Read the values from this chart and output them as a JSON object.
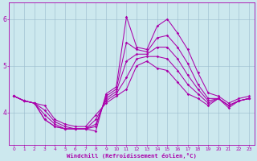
{
  "xlabel": "Windchill (Refroidissement éolien,°C)",
  "bg_color": "#cce8ee",
  "line_color": "#aa00aa",
  "grid_color": "#99bbcc",
  "xlim": [
    -0.5,
    23.5
  ],
  "ylim": [
    3.3,
    6.35
  ],
  "xticks": [
    0,
    1,
    2,
    3,
    4,
    5,
    6,
    7,
    8,
    9,
    10,
    11,
    12,
    13,
    14,
    15,
    16,
    17,
    18,
    19,
    20,
    21,
    22,
    23
  ],
  "yticks": [
    4,
    5,
    6
  ],
  "series": [
    [
      4.35,
      4.25,
      4.2,
      3.85,
      3.7,
      3.65,
      3.65,
      3.65,
      3.6,
      4.4,
      4.55,
      6.05,
      5.4,
      5.35,
      5.85,
      6.0,
      5.7,
      5.35,
      4.85,
      4.42,
      4.35,
      4.2,
      4.3,
      4.35
    ],
    [
      4.35,
      4.25,
      4.2,
      3.85,
      3.7,
      3.65,
      3.65,
      3.65,
      3.7,
      4.35,
      4.5,
      5.5,
      5.35,
      5.3,
      5.6,
      5.65,
      5.4,
      5.05,
      4.6,
      4.3,
      4.3,
      4.15,
      4.25,
      4.3
    ],
    [
      4.35,
      4.25,
      4.2,
      3.95,
      3.75,
      3.65,
      3.65,
      3.65,
      3.75,
      4.3,
      4.45,
      5.1,
      5.25,
      5.25,
      5.4,
      5.4,
      5.15,
      4.8,
      4.5,
      4.25,
      4.3,
      4.15,
      4.25,
      4.3
    ],
    [
      4.35,
      4.25,
      4.2,
      4.05,
      3.8,
      3.7,
      3.65,
      3.65,
      3.85,
      4.25,
      4.4,
      4.75,
      5.15,
      5.2,
      5.2,
      5.15,
      4.9,
      4.6,
      4.4,
      4.2,
      4.3,
      4.15,
      4.25,
      4.3
    ],
    [
      4.35,
      4.25,
      4.2,
      4.15,
      3.85,
      3.75,
      3.7,
      3.7,
      3.95,
      4.2,
      4.35,
      4.5,
      5.0,
      5.1,
      4.95,
      4.9,
      4.65,
      4.4,
      4.3,
      4.15,
      4.3,
      4.1,
      4.25,
      4.3
    ]
  ],
  "xtick_fontsize": 4.2,
  "ytick_fontsize": 5.5,
  "xlabel_fontsize": 5.2,
  "linewidth": 0.75,
  "markersize": 1.8
}
